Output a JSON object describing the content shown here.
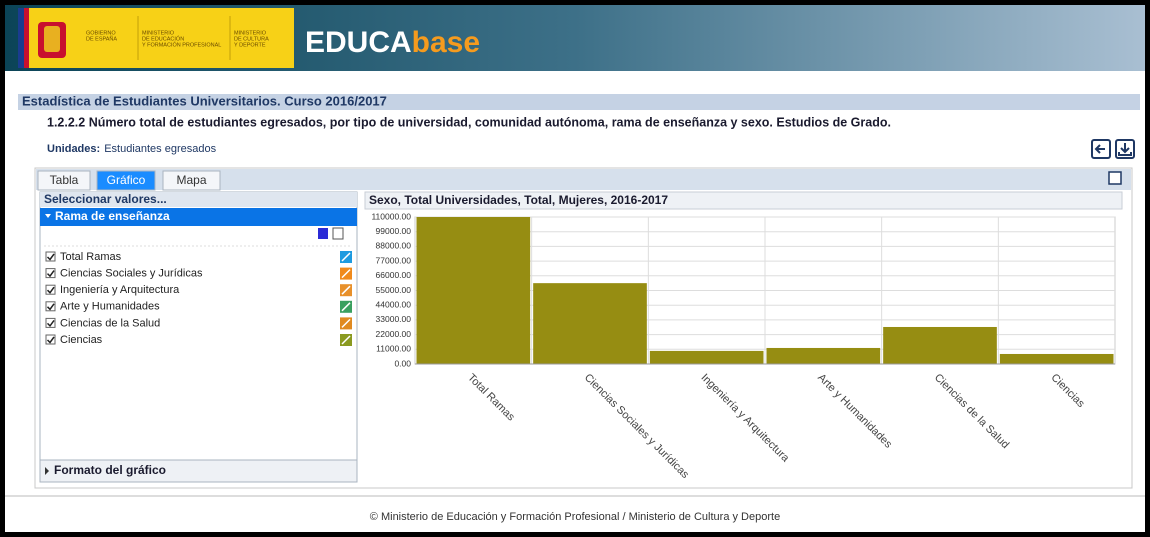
{
  "header": {
    "logo": {
      "gobierno": [
        "GOBIERNO",
        "DE ESPAÑA"
      ],
      "ministerio_educacion": [
        "MINISTERIO",
        "DE EDUCACIÓN",
        "Y FORMACIÓN PROFESIONAL"
      ],
      "ministerio_cultura": [
        "MINISTERIO",
        "DE CULTURA",
        "Y DEPORTE"
      ]
    },
    "brand_a": "EDUCA",
    "brand_b": "base"
  },
  "page": {
    "title": "Estadística de Estudiantes Universitarios. Curso 2016/2017",
    "subtitle": "1.2.2.2 Número total de estudiantes egresados, por tipo de universidad, comunidad autónoma, rama de enseñanza y sexo. Estudios de Grado.",
    "units_label": "Unidades:",
    "units": "Estudiantes egresados"
  },
  "tabs": [
    "Tabla",
    "Gráfico",
    "Mapa"
  ],
  "active_tab": 1,
  "selector": {
    "header": "Seleccionar valores...",
    "section": "Rama de enseñanza",
    "items": [
      "Total Ramas",
      "Ciencias Sociales y Jurídicas",
      "Ingeniería y Arquitectura",
      "Arte y Humanidades",
      "Ciencias de la Salud",
      "Ciencias"
    ],
    "footer_section": "Formato del gráfico"
  },
  "chart_data": {
    "type": "bar",
    "title": "Sexo, Total Universidades, Total, Mujeres, 2016-2017",
    "categories": [
      "Total Ramas",
      "Ciencias Sociales y Jurídicas",
      "Ingeniería y Arquitectura",
      "Arte y Humanidades",
      "Ciencias de la Salud",
      "Ciencias"
    ],
    "values": [
      110000,
      60500,
      9800,
      12000,
      27700,
      7500
    ],
    "color": "#968d12",
    "ylim": [
      0,
      110000
    ],
    "yticks": [
      {
        "value": 0,
        "label": "0.00"
      },
      {
        "value": 11000,
        "label": "11000.00"
      },
      {
        "value": 22000,
        "label": "22000.00"
      },
      {
        "value": 33000,
        "label": "33000.00"
      },
      {
        "value": 44000,
        "label": "44000.00"
      },
      {
        "value": 55000,
        "label": "55000.00"
      },
      {
        "value": 66000,
        "label": "66000.00"
      },
      {
        "value": 77000,
        "label": "77000.00"
      },
      {
        "value": 88000,
        "label": "88000.00"
      },
      {
        "value": 99000,
        "label": "99000.00"
      },
      {
        "value": 110000,
        "label": "110000.00"
      }
    ],
    "grid": true
  },
  "footer": "© Ministerio de Educación y Formación Profesional / Ministerio de Cultura y Deporte"
}
